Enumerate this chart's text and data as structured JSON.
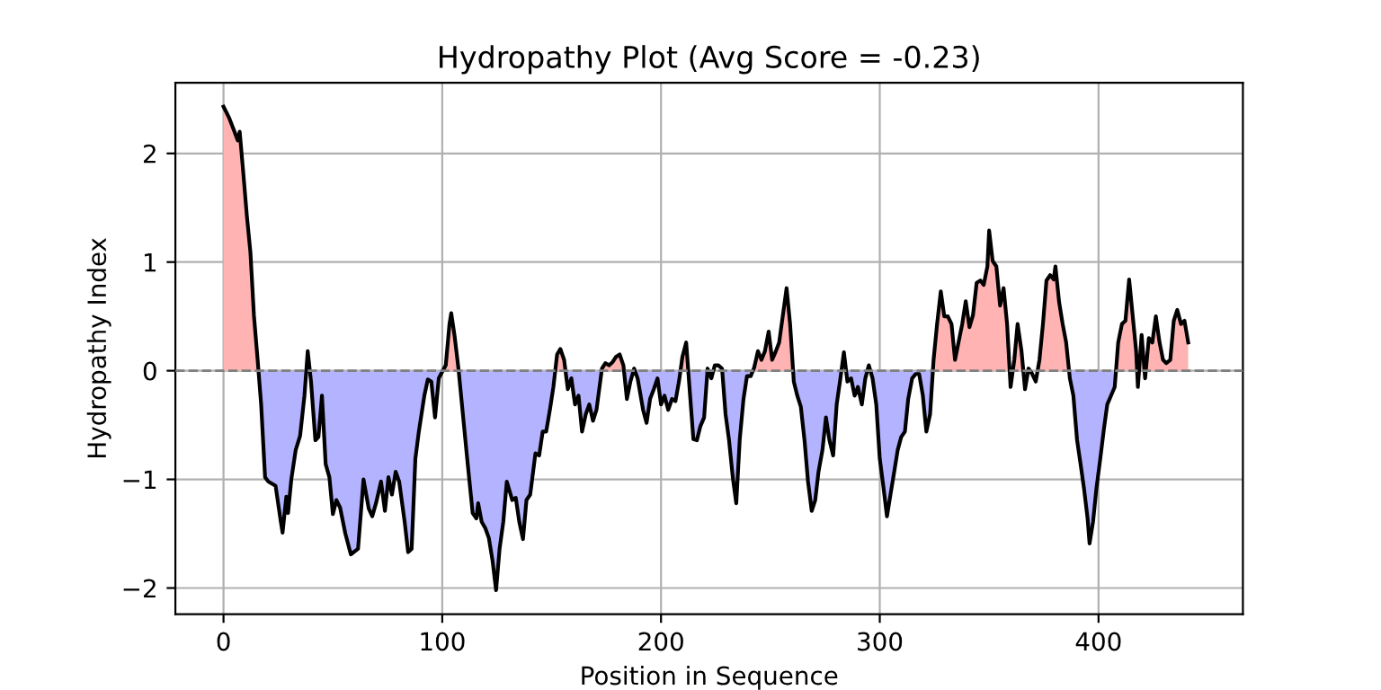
{
  "chart_data": {
    "type": "area",
    "title": "Hydropathy Plot (Avg Score = -0.23)",
    "xlabel": "Position in Sequence",
    "ylabel": "Hydropathy Index",
    "xlim": [
      -22,
      466
    ],
    "ylim": [
      -2.24,
      2.65
    ],
    "xticks": [
      0,
      100,
      200,
      300,
      400
    ],
    "yticks": [
      -2,
      -1,
      0,
      1,
      2
    ],
    "grid": true,
    "line_style": "solid",
    "ref_lines": [
      {
        "axis": "y",
        "value": 0,
        "color": "#808080",
        "line_style": "dashed"
      }
    ],
    "x": [
      0,
      2.5,
      5,
      6.5,
      7.4,
      9,
      10.7,
      12.3,
      13.9,
      15.6,
      17.2,
      19,
      20.5,
      23.8,
      26.2,
      27,
      28.7,
      29.5,
      31,
      33,
      35,
      37,
      38.5,
      40,
      42,
      43.4,
      45,
      46.7,
      48.4,
      50,
      51.6,
      53.3,
      55.7,
      58.2,
      61.5,
      64,
      66.4,
      68,
      69.7,
      72,
      73.8,
      75.4,
      77,
      78.7,
      80.3,
      82.8,
      84.4,
      86,
      87.7,
      89.3,
      91.8,
      93.4,
      95,
      96.7,
      98.4,
      101.6,
      103.3,
      104.1,
      105.7,
      107.4,
      111.5,
      113.9,
      115.6,
      116.4,
      118,
      119.7,
      121.3,
      123,
      124.6,
      126.2,
      127.9,
      129.5,
      132,
      133.6,
      135.2,
      136.9,
      138.5,
      140.2,
      142.6,
      144.3,
      145.9,
      147.5,
      149.2,
      150.8,
      152.5,
      154,
      155.7,
      157.4,
      159,
      160.7,
      162.3,
      163.9,
      165.6,
      167.2,
      168.9,
      170.5,
      173,
      174.6,
      176.2,
      177.9,
      179.5,
      181.1,
      182.8,
      184.4,
      186,
      187.7,
      189.3,
      191.8,
      193.4,
      195,
      196.7,
      198.4,
      200,
      201.6,
      203.3,
      205,
      206.6,
      208.2,
      209.8,
      211.5,
      213,
      214.8,
      216.4,
      218,
      219.7,
      221.3,
      223,
      224.6,
      226.2,
      227.9,
      229.5,
      231.1,
      232.8,
      234.4,
      236,
      237.7,
      239.3,
      241,
      242.6,
      244.3,
      245.9,
      247.5,
      249.2,
      250.8,
      252.5,
      254,
      255.7,
      257.4,
      259,
      260.7,
      262.3,
      263.9,
      265.6,
      267.2,
      268.9,
      270.5,
      272,
      273.8,
      275.4,
      277,
      278.7,
      280.3,
      282,
      283.6,
      285.2,
      286.9,
      288.5,
      290,
      291.8,
      293.4,
      295,
      296.7,
      298.4,
      300,
      301.6,
      303.3,
      304.9,
      306.6,
      308.2,
      309.8,
      311.5,
      313,
      314.8,
      316.4,
      318,
      319.7,
      321.3,
      323,
      324.6,
      326.2,
      327.9,
      329.5,
      331.1,
      332.8,
      334.4,
      336,
      337.7,
      339.3,
      341,
      342.6,
      344.3,
      346,
      347.5,
      349.2,
      350,
      351.6,
      353.3,
      355,
      356.6,
      358.2,
      359.8,
      361.5,
      363,
      364.8,
      366.4,
      368,
      369.7,
      371.3,
      373,
      374.6,
      376.2,
      377.9,
      379.5,
      380.3,
      382,
      383.6,
      385.2,
      386.9,
      388.5,
      390.2,
      391.8,
      393.4,
      395,
      395.9,
      397.5,
      399,
      400.8,
      402.5,
      404,
      405.7,
      407.4,
      409,
      410.7,
      412.3,
      414,
      415.6,
      417.2,
      418,
      419.7,
      421.3,
      423,
      424.6,
      426.2,
      427.9,
      429.5,
      431,
      432.8,
      434.4,
      436,
      437.7,
      439.3,
      441
    ],
    "series": [
      {
        "color": "#ffb3b3",
        "values": [
          2.43,
          2.33,
          2.2,
          2.12,
          2.2,
          1.83,
          1.42,
          1.09,
          0.51,
          0.1,
          null,
          null,
          null,
          null,
          null,
          null,
          null,
          null,
          null,
          null,
          null,
          null,
          0.18,
          null,
          null,
          null,
          null,
          null,
          null,
          null,
          null,
          null,
          null,
          null,
          null,
          null,
          null,
          null,
          null,
          null,
          null,
          null,
          null,
          null,
          null,
          null,
          null,
          null,
          null,
          null,
          null,
          null,
          null,
          null,
          null,
          0.05,
          0.43,
          0.53,
          0.31,
          0.02,
          null,
          null,
          null,
          null,
          null,
          null,
          null,
          null,
          null,
          null,
          null,
          null,
          null,
          null,
          null,
          null,
          null,
          null,
          null,
          null,
          null,
          null,
          null,
          null,
          0.15,
          0.2,
          0.1,
          null,
          null,
          null,
          null,
          null,
          null,
          null,
          null,
          null,
          0.02,
          0.07,
          0.05,
          0.08,
          0.13,
          0.15,
          0.05,
          null,
          null,
          null,
          null,
          null,
          null,
          null,
          null,
          null,
          null,
          null,
          null,
          null,
          null,
          null,
          0.13,
          0.26,
          null,
          null,
          null,
          null,
          null,
          null,
          null,
          null,
          null,
          null,
          null,
          null,
          null,
          null,
          null,
          null,
          null,
          null,
          0.03,
          0.18,
          0.1,
          0.18,
          0.36,
          0.1,
          0.18,
          0.26,
          0.51,
          0.76,
          0.43,
          null,
          null,
          null,
          null,
          null,
          null,
          null,
          null,
          null,
          null,
          null,
          null,
          null,
          null,
          0.17,
          null,
          null,
          null,
          null,
          null,
          null,
          null,
          null,
          null,
          null,
          null,
          null,
          null,
          null,
          null,
          null,
          null,
          null,
          null,
          null,
          null,
          null,
          null,
          null,
          0.1,
          0.43,
          0.73,
          0.5,
          0.5,
          0.43,
          0.1,
          0.26,
          0.43,
          0.64,
          0.4,
          0.51,
          0.81,
          0.83,
          0.79,
          0.96,
          1.29,
          1.01,
          0.96,
          0.6,
          0.76,
          0.43,
          null,
          0.1,
          0.43,
          0.18,
          null,
          null,
          null,
          null,
          0.1,
          0.43,
          0.83,
          0.88,
          0.84,
          0.96,
          0.63,
          0.43,
          0.26,
          null,
          null,
          null,
          null,
          null,
          null,
          null,
          null,
          null,
          null,
          null,
          null,
          null,
          null,
          0.26,
          0.43,
          0.46,
          0.84,
          0.51,
          0.18,
          null,
          0.33,
          null,
          0.3,
          0.26,
          0.5,
          0.26,
          0.1,
          0.07,
          0.1,
          0.46,
          0.56,
          0.43,
          0.46,
          0.26
        ]
      },
      {
        "color": "#b3b3ff",
        "values": [
          null,
          null,
          null,
          null,
          null,
          null,
          null,
          null,
          null,
          null,
          -0.31,
          -0.98,
          -1.02,
          -1.06,
          -1.39,
          -1.49,
          -1.16,
          -1.31,
          -1.0,
          -0.73,
          -0.6,
          -0.23,
          null,
          -0.1,
          -0.64,
          -0.61,
          -0.23,
          -0.86,
          -0.98,
          -1.32,
          -1.19,
          -1.26,
          -1.5,
          -1.69,
          -1.64,
          -1.0,
          -1.27,
          -1.34,
          -1.22,
          -1.02,
          -1.29,
          -0.98,
          -1.14,
          -0.93,
          -1.02,
          -1.39,
          -1.67,
          -1.64,
          -0.81,
          -0.56,
          -0.23,
          -0.08,
          -0.1,
          -0.43,
          -0.07,
          null,
          null,
          null,
          null,
          null,
          -0.83,
          -1.31,
          -1.36,
          -1.22,
          -1.39,
          -1.45,
          -1.54,
          -1.75,
          -2.02,
          -1.64,
          -1.39,
          -1.02,
          -1.19,
          -1.17,
          -1.39,
          -1.55,
          -1.19,
          -1.14,
          -0.76,
          -0.78,
          -0.56,
          -0.56,
          -0.36,
          -0.15,
          null,
          null,
          null,
          -0.17,
          -0.07,
          -0.31,
          -0.23,
          -0.56,
          -0.4,
          -0.31,
          -0.46,
          -0.36,
          null,
          null,
          null,
          null,
          null,
          null,
          null,
          -0.26,
          -0.1,
          null,
          -0.07,
          -0.36,
          -0.48,
          -0.26,
          -0.17,
          -0.07,
          -0.31,
          -0.23,
          -0.36,
          -0.26,
          -0.28,
          -0.1,
          null,
          null,
          -0.15,
          -0.63,
          -0.64,
          -0.51,
          -0.43,
          null,
          null,
          null,
          null,
          null,
          -0.4,
          -0.64,
          -0.98,
          -1.22,
          -0.63,
          -0.26,
          -0.05,
          -0.05,
          null,
          null,
          null,
          null,
          null,
          null,
          null,
          null,
          null,
          null,
          null,
          -0.1,
          -0.23,
          -0.33,
          -0.64,
          -1.02,
          -1.29,
          -1.19,
          -0.93,
          -0.73,
          -0.43,
          -0.64,
          -0.78,
          -0.31,
          -0.07,
          null,
          -0.1,
          -0.07,
          -0.23,
          -0.15,
          -0.31,
          -0.07,
          null,
          -0.07,
          -0.31,
          -0.81,
          -1.06,
          -1.34,
          -1.14,
          -0.93,
          -0.73,
          -0.61,
          -0.56,
          -0.26,
          -0.07,
          -0.03,
          -0.03,
          -0.23,
          -0.56,
          -0.4,
          null,
          null,
          null,
          null,
          null,
          null,
          null,
          null,
          null,
          null,
          null,
          null,
          null,
          null,
          null,
          null,
          null,
          null,
          null,
          null,
          null,
          null,
          -0.15,
          null,
          null,
          null,
          -0.17,
          null,
          null,
          null,
          null,
          null,
          null,
          null,
          null,
          null,
          null,
          null,
          null,
          -0.07,
          -0.23,
          -0.64,
          -0.86,
          -1.09,
          -1.36,
          -1.59,
          -1.39,
          -1.09,
          -0.81,
          -0.53,
          -0.31,
          -0.23,
          -0.15,
          null,
          null,
          null,
          null,
          null,
          null,
          -0.15,
          null,
          null,
          null,
          null,
          null,
          null,
          null,
          null,
          null,
          null,
          null,
          null,
          null,
          null
        ]
      },
      {
        "type": "line",
        "color": "#000000",
        "values": [
          2.43,
          2.33,
          2.2,
          2.12,
          2.2,
          1.83,
          1.42,
          1.09,
          0.51,
          0.1,
          -0.31,
          -0.98,
          -1.02,
          -1.06,
          -1.39,
          -1.49,
          -1.16,
          -1.31,
          -1.0,
          -0.73,
          -0.6,
          -0.23,
          0.18,
          -0.1,
          -0.64,
          -0.61,
          -0.23,
          -0.86,
          -0.98,
          -1.32,
          -1.19,
          -1.26,
          -1.5,
          -1.69,
          -1.64,
          -1.0,
          -1.27,
          -1.34,
          -1.22,
          -1.02,
          -1.29,
          -0.98,
          -1.14,
          -0.93,
          -1.02,
          -1.39,
          -1.67,
          -1.64,
          -0.81,
          -0.56,
          -0.23,
          -0.08,
          -0.1,
          -0.43,
          -0.07,
          0.05,
          0.43,
          0.53,
          0.31,
          0.02,
          -0.83,
          -1.31,
          -1.36,
          -1.22,
          -1.39,
          -1.45,
          -1.54,
          -1.75,
          -2.02,
          -1.64,
          -1.39,
          -1.02,
          -1.19,
          -1.17,
          -1.39,
          -1.55,
          -1.19,
          -1.14,
          -0.76,
          -0.78,
          -0.56,
          -0.56,
          -0.36,
          -0.15,
          0.15,
          0.2,
          0.1,
          -0.17,
          -0.07,
          -0.31,
          -0.23,
          -0.56,
          -0.4,
          -0.31,
          -0.46,
          -0.36,
          0.02,
          0.07,
          0.05,
          0.08,
          0.13,
          0.15,
          0.05,
          -0.26,
          -0.1,
          0.02,
          -0.07,
          -0.36,
          -0.48,
          -0.26,
          -0.17,
          -0.07,
          -0.31,
          -0.23,
          -0.36,
          -0.26,
          -0.28,
          -0.1,
          0.13,
          0.26,
          -0.15,
          -0.63,
          -0.64,
          -0.51,
          -0.43,
          0.02,
          -0.07,
          0.05,
          0.05,
          0.02,
          -0.4,
          -0.64,
          -0.98,
          -1.22,
          -0.63,
          -0.26,
          -0.05,
          -0.05,
          0.03,
          0.18,
          0.1,
          0.18,
          0.36,
          0.1,
          0.18,
          0.26,
          0.51,
          0.76,
          0.43,
          -0.1,
          -0.23,
          -0.33,
          -0.64,
          -1.02,
          -1.29,
          -1.19,
          -0.93,
          -0.73,
          -0.43,
          -0.64,
          -0.78,
          -0.31,
          -0.07,
          0.17,
          -0.1,
          -0.07,
          -0.23,
          -0.15,
          -0.31,
          -0.07,
          0.05,
          -0.07,
          -0.31,
          -0.81,
          -1.06,
          -1.34,
          -1.14,
          -0.93,
          -0.73,
          -0.61,
          -0.56,
          -0.26,
          -0.07,
          -0.03,
          -0.03,
          -0.23,
          -0.56,
          -0.4,
          0.1,
          0.43,
          0.73,
          0.5,
          0.5,
          0.43,
          0.1,
          0.26,
          0.43,
          0.64,
          0.4,
          0.51,
          0.81,
          0.83,
          0.79,
          0.96,
          1.29,
          1.01,
          0.96,
          0.6,
          0.76,
          0.43,
          -0.15,
          0.1,
          0.43,
          0.18,
          -0.17,
          0.02,
          -0.03,
          -0.1,
          0.1,
          0.43,
          0.83,
          0.88,
          0.84,
          0.96,
          0.63,
          0.43,
          0.26,
          -0.07,
          -0.23,
          -0.64,
          -0.86,
          -1.09,
          -1.36,
          -1.59,
          -1.39,
          -1.09,
          -0.81,
          -0.53,
          -0.31,
          -0.23,
          -0.15,
          0.26,
          0.43,
          0.46,
          0.84,
          0.51,
          0.18,
          -0.15,
          0.33,
          -0.07,
          0.3,
          0.26,
          0.5,
          0.26,
          0.1,
          0.07,
          0.1,
          0.46,
          0.56,
          0.43,
          0.46,
          0.26
        ]
      }
    ]
  }
}
